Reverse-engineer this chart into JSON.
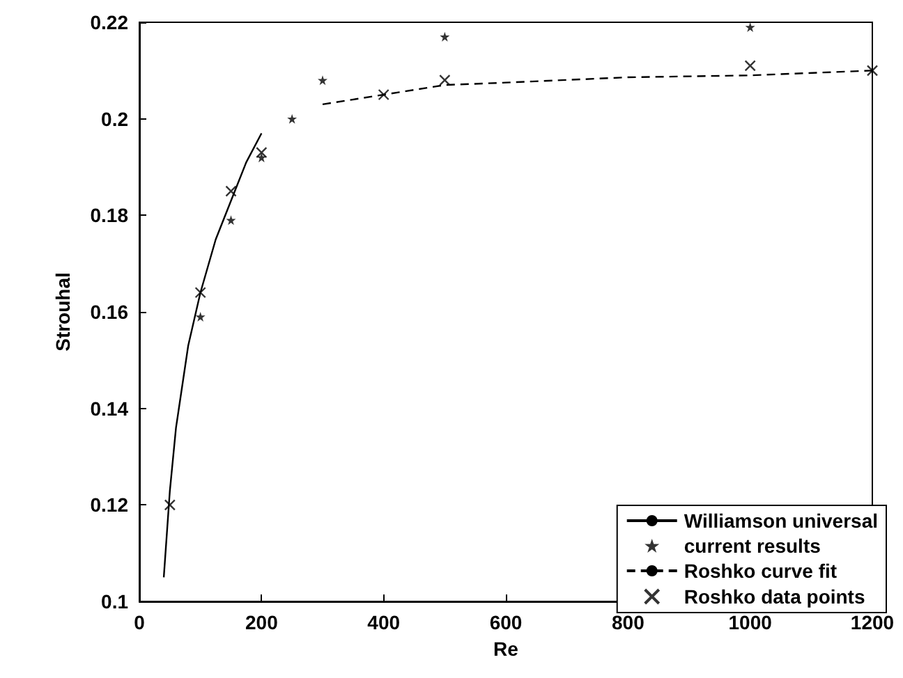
{
  "chart_data": {
    "type": "line",
    "xlabel": "Re",
    "ylabel": "Strouhal",
    "xlim": [
      0,
      1200
    ],
    "xticks": [
      0,
      200,
      400,
      600,
      800,
      1000,
      1200
    ],
    "ylim": [
      0.1,
      0.22
    ],
    "yticks": [
      0.1,
      0.12,
      0.14,
      0.16,
      0.18,
      0.2,
      0.22
    ],
    "grid": false,
    "legend": "bottom right",
    "series": [
      {
        "name": "Williamson universal",
        "color": "#000000",
        "line_style": "solid",
        "marker": "none",
        "x": [
          40,
          50,
          60,
          80,
          100,
          125,
          150,
          175,
          200
        ],
        "values": [
          0.105,
          0.123,
          0.136,
          0.153,
          0.164,
          0.175,
          0.183,
          0.191,
          0.197
        ]
      },
      {
        "name": "current results",
        "type": "scatter",
        "color": "#000000",
        "marker": "star",
        "x": [
          100,
          150,
          200,
          250,
          300,
          500,
          1000
        ],
        "values": [
          0.159,
          0.179,
          0.192,
          0.2,
          0.208,
          0.217,
          0.219
        ]
      },
      {
        "name": "Roshko curve fit",
        "color": "#000000",
        "line_style": "dashed",
        "marker": "none",
        "x": [
          300,
          400,
          500,
          600,
          800,
          1000,
          1200
        ],
        "values": [
          0.203,
          0.205,
          0.207,
          0.2075,
          0.2086,
          0.209,
          0.21
        ]
      },
      {
        "name": "Roshko data points",
        "type": "scatter",
        "color": "#000000",
        "marker": "cross",
        "x": [
          50,
          100,
          150,
          200,
          400,
          500,
          1000,
          1200
        ],
        "values": [
          0.12,
          0.164,
          0.185,
          0.193,
          0.205,
          0.208,
          0.211,
          0.21
        ]
      }
    ]
  }
}
